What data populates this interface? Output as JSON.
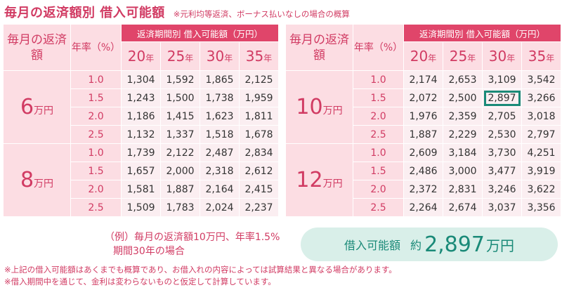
{
  "title": "毎月の返済額別 借入可能額",
  "title_note": "※元利均等返済、ボーナス払いなしの場合の概算",
  "headers": {
    "monthly_payment": "毎月の返済額",
    "rate": "年率（%）",
    "period_header": "返済期間別 借入可能額（万円）",
    "year_unit": "年",
    "years": [
      "20",
      "25",
      "30",
      "35"
    ]
  },
  "group_unit": "万円",
  "tables": [
    {
      "groups": [
        {
          "amount": "6",
          "rows": [
            {
              "rate": "1.0",
              "values": [
                "1,304",
                "1,592",
                "1,865",
                "2,125"
              ]
            },
            {
              "rate": "1.5",
              "values": [
                "1,243",
                "1,500",
                "1,738",
                "1,959"
              ]
            },
            {
              "rate": "2.0",
              "values": [
                "1,186",
                "1,415",
                "1,623",
                "1,811"
              ]
            },
            {
              "rate": "2.5",
              "values": [
                "1,132",
                "1,337",
                "1,518",
                "1,678"
              ]
            }
          ]
        },
        {
          "amount": "8",
          "rows": [
            {
              "rate": "1.0",
              "values": [
                "1,739",
                "2,122",
                "2,487",
                "2,834"
              ]
            },
            {
              "rate": "1.5",
              "values": [
                "1,657",
                "2,000",
                "2,318",
                "2,612"
              ]
            },
            {
              "rate": "2.0",
              "values": [
                "1,581",
                "1,887",
                "2,164",
                "2,415"
              ]
            },
            {
              "rate": "2.5",
              "values": [
                "1,509",
                "1,783",
                "2,024",
                "2,237"
              ]
            }
          ]
        }
      ]
    },
    {
      "groups": [
        {
          "amount": "10",
          "rows": [
            {
              "rate": "1.0",
              "values": [
                "2,174",
                "2,653",
                "3,109",
                "3,542"
              ]
            },
            {
              "rate": "1.5",
              "values": [
                "2,072",
                "2,500",
                "2,897",
                "3,266"
              ]
            },
            {
              "rate": "2.0",
              "values": [
                "1,976",
                "2,359",
                "2,705",
                "3,018"
              ]
            },
            {
              "rate": "2.5",
              "values": [
                "1,887",
                "2,229",
                "2,530",
                "2,797"
              ]
            }
          ]
        },
        {
          "amount": "12",
          "rows": [
            {
              "rate": "1.0",
              "values": [
                "2,609",
                "3,184",
                "3,730",
                "4,251"
              ]
            },
            {
              "rate": "1.5",
              "values": [
                "2,486",
                "3,000",
                "3,477",
                "3,919"
              ]
            },
            {
              "rate": "2.0",
              "values": [
                "2,372",
                "2,831",
                "3,246",
                "3,622"
              ]
            },
            {
              "rate": "2.5",
              "values": [
                "2,264",
                "2,674",
                "3,037",
                "3,356"
              ]
            }
          ]
        }
      ]
    }
  ],
  "highlight": {
    "table": 1,
    "group": 0,
    "row": 1,
    "col": 2
  },
  "example": {
    "line1": "（例）毎月の返済額10万円、年率1.5%",
    "line2": "期間30年の場合"
  },
  "result": {
    "label": "借入可能額",
    "prefix": "約",
    "value": "2,897",
    "unit": "万円"
  },
  "notes": [
    "※上記の借入可能額はあくまでも概算であり、お借入れの内容によっては試算結果と異なる場合があります。",
    "※借入期間中を通じて、金利は変わらないものと仮定して計算しています。"
  ],
  "colors": {
    "accent": "#d13b63",
    "header_fill": "#e0456a",
    "light_pink": "#fcdde3",
    "cell_pink": "#fbeef1",
    "teal": "#1a8a78",
    "teal_light": "#d9efe9"
  }
}
